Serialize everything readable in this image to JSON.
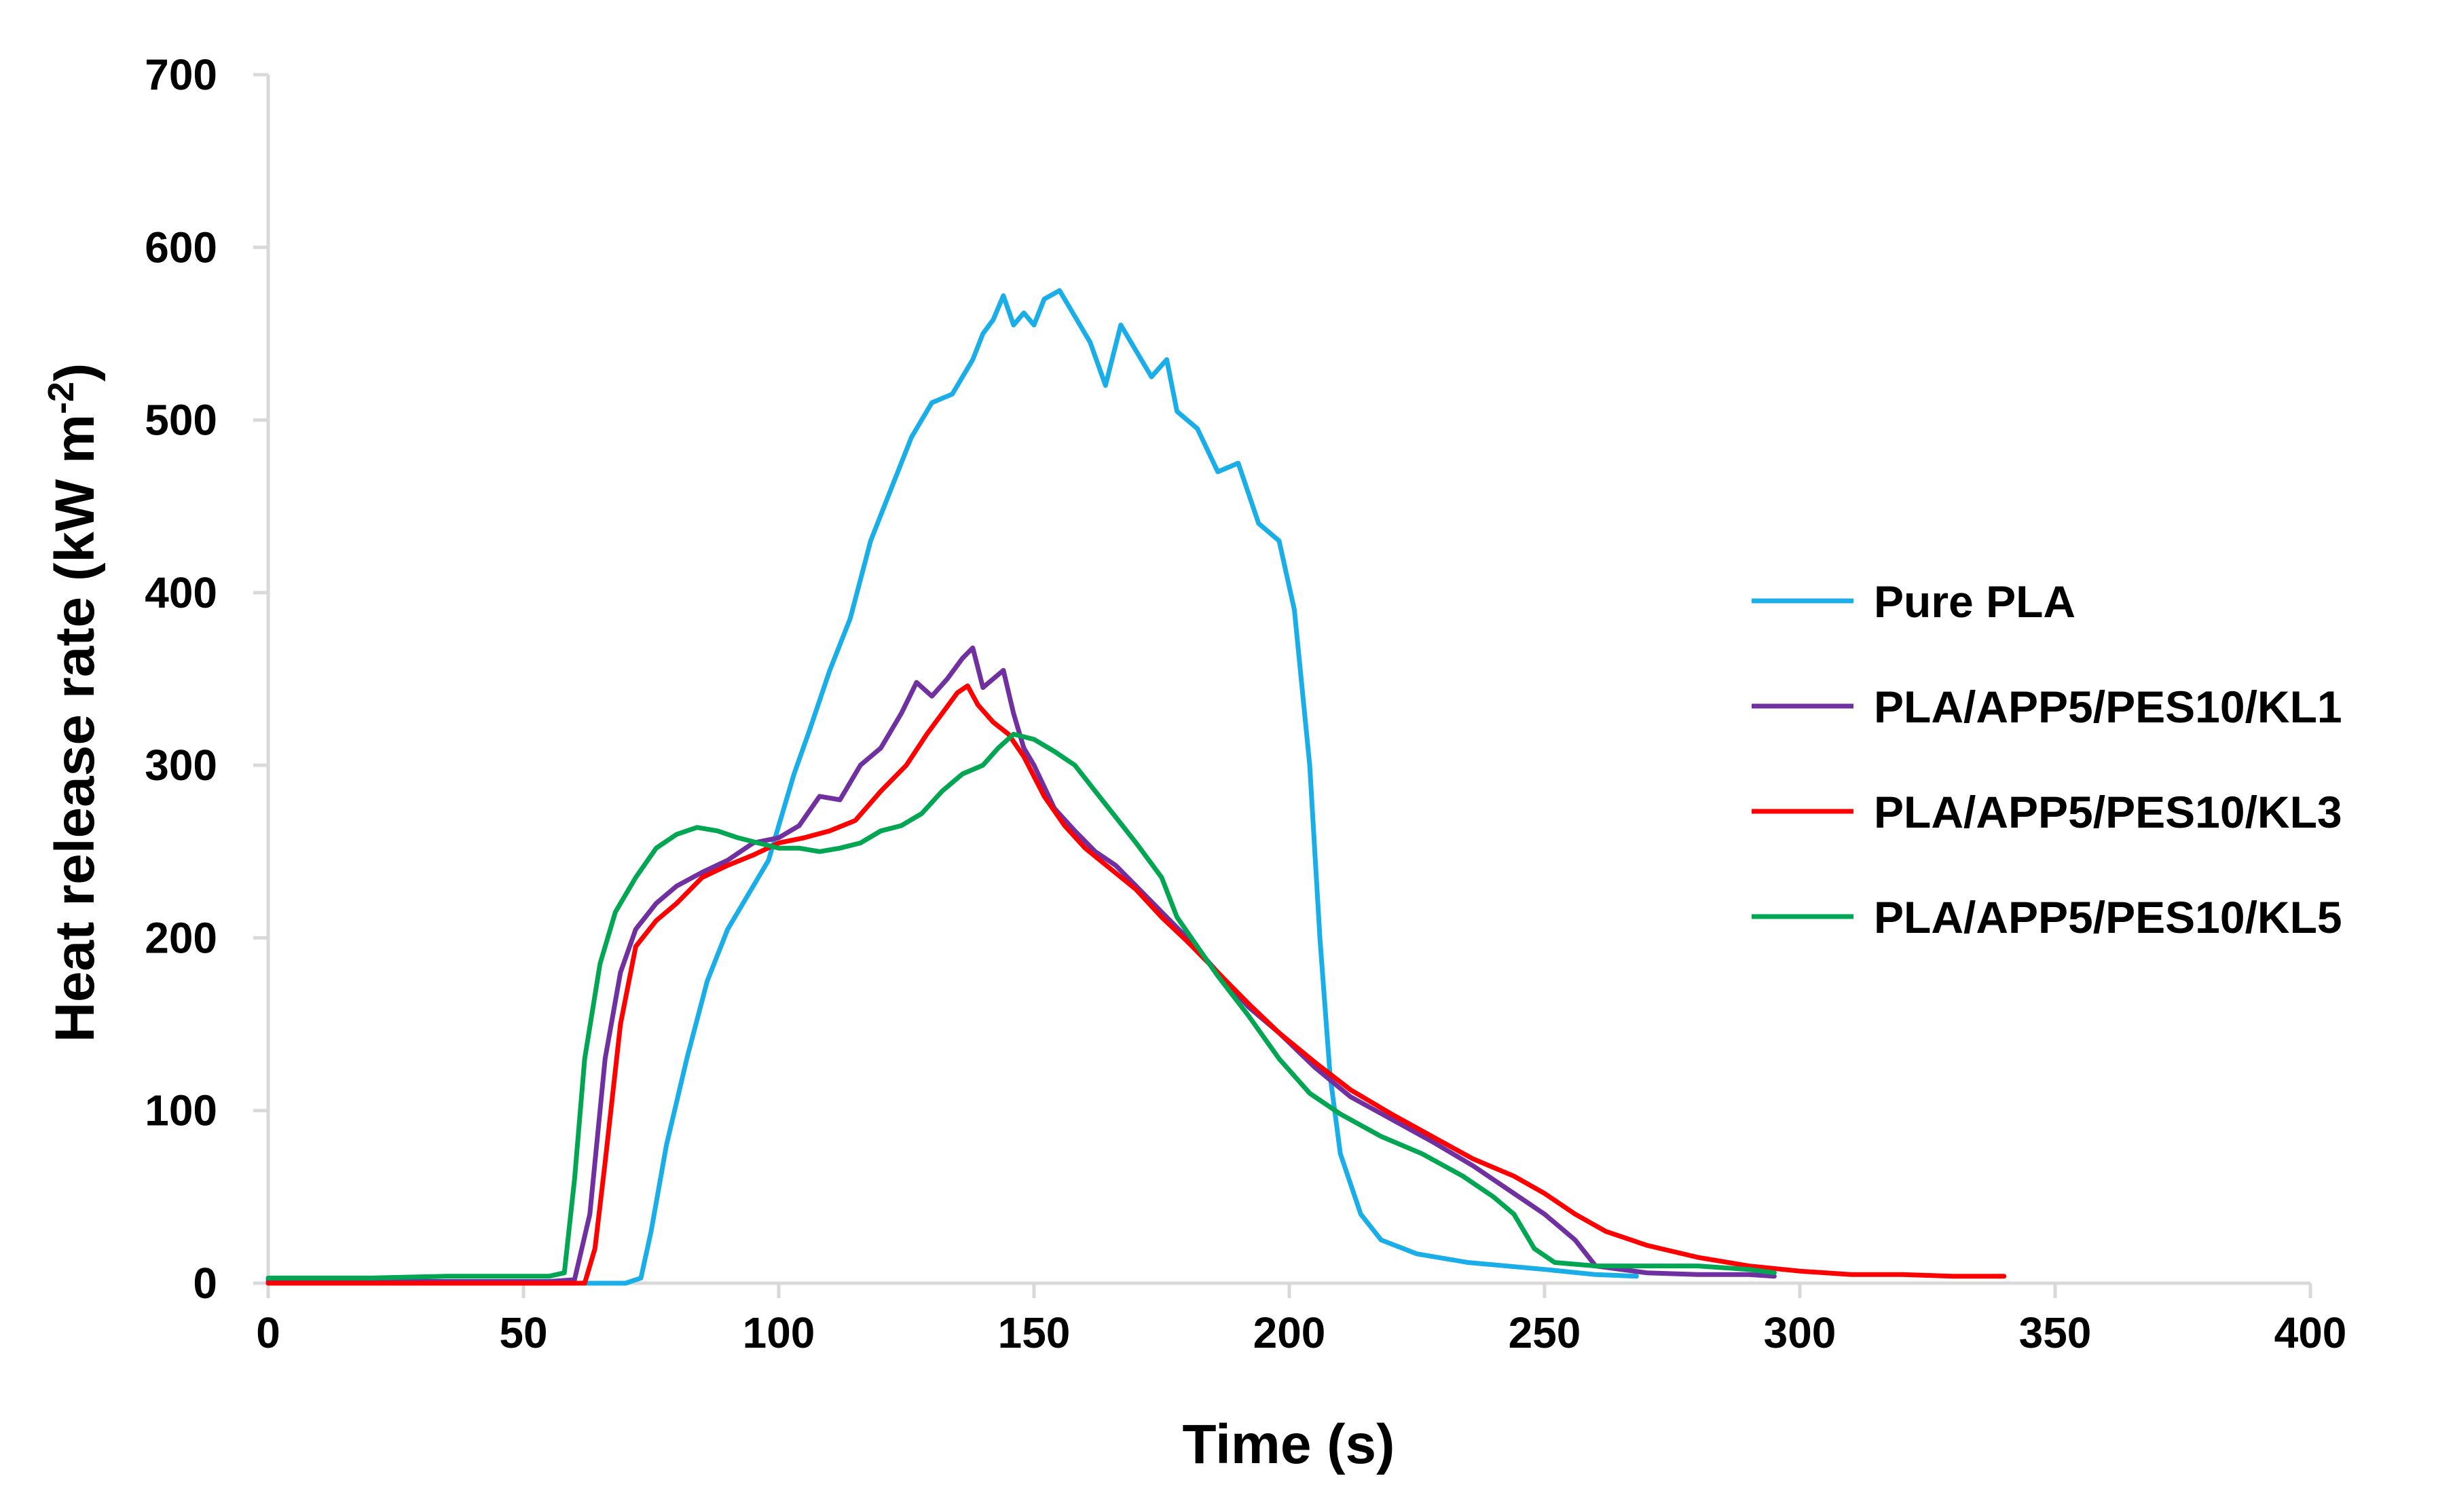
{
  "chart_data": {
    "type": "line",
    "title": "",
    "xlabel": "Time (s)",
    "ylabel_main": "Heat release rate (kW m",
    "ylabel_sup": "-2",
    "ylabel_close": ")",
    "xlim": [
      0,
      400
    ],
    "ylim": [
      0,
      700
    ],
    "xticks": [
      0,
      50,
      100,
      150,
      200,
      250,
      300,
      350,
      400
    ],
    "yticks": [
      0,
      100,
      200,
      300,
      400,
      500,
      600,
      700
    ],
    "xtick_labels": [
      "0",
      "50",
      "100",
      "150",
      "200",
      "250",
      "300",
      "350",
      "400"
    ],
    "ytick_labels": [
      "0",
      "100",
      "200",
      "300",
      "400",
      "500",
      "600",
      "700"
    ],
    "grid": false,
    "legend_position": "right",
    "series": [
      {
        "name": "Pure PLA",
        "color": "#1AAEE8",
        "points": [
          [
            0,
            2
          ],
          [
            20,
            1
          ],
          [
            40,
            1
          ],
          [
            60,
            0
          ],
          [
            70,
            0
          ],
          [
            73,
            3
          ],
          [
            75,
            30
          ],
          [
            78,
            80
          ],
          [
            82,
            130
          ],
          [
            86,
            175
          ],
          [
            90,
            205
          ],
          [
            94,
            225
          ],
          [
            98,
            245
          ],
          [
            100,
            265
          ],
          [
            103,
            295
          ],
          [
            106,
            320
          ],
          [
            110,
            355
          ],
          [
            114,
            385
          ],
          [
            118,
            430
          ],
          [
            122,
            460
          ],
          [
            126,
            490
          ],
          [
            130,
            510
          ],
          [
            134,
            515
          ],
          [
            138,
            535
          ],
          [
            140,
            550
          ],
          [
            142,
            558
          ],
          [
            144,
            572
          ],
          [
            146,
            555
          ],
          [
            148,
            562
          ],
          [
            150,
            555
          ],
          [
            152,
            570
          ],
          [
            155,
            575
          ],
          [
            158,
            560
          ],
          [
            161,
            545
          ],
          [
            164,
            520
          ],
          [
            167,
            555
          ],
          [
            170,
            540
          ],
          [
            173,
            525
          ],
          [
            176,
            535
          ],
          [
            178,
            505
          ],
          [
            182,
            495
          ],
          [
            186,
            470
          ],
          [
            190,
            475
          ],
          [
            194,
            440
          ],
          [
            198,
            430
          ],
          [
            201,
            390
          ],
          [
            204,
            300
          ],
          [
            206,
            200
          ],
          [
            208,
            120
          ],
          [
            210,
            75
          ],
          [
            214,
            40
          ],
          [
            218,
            25
          ],
          [
            225,
            17
          ],
          [
            235,
            12
          ],
          [
            250,
            8
          ],
          [
            260,
            5
          ],
          [
            268,
            4
          ]
        ]
      },
      {
        "name": "PLA/APP5/PES10/KL1",
        "color": "#7030A0",
        "points": [
          [
            0,
            1
          ],
          [
            20,
            1
          ],
          [
            40,
            1
          ],
          [
            55,
            1
          ],
          [
            60,
            2
          ],
          [
            63,
            40
          ],
          [
            66,
            130
          ],
          [
            69,
            180
          ],
          [
            72,
            205
          ],
          [
            76,
            220
          ],
          [
            80,
            230
          ],
          [
            85,
            238
          ],
          [
            90,
            245
          ],
          [
            95,
            255
          ],
          [
            100,
            258
          ],
          [
            104,
            265
          ],
          [
            108,
            282
          ],
          [
            112,
            280
          ],
          [
            116,
            300
          ],
          [
            120,
            310
          ],
          [
            124,
            330
          ],
          [
            127,
            348
          ],
          [
            130,
            340
          ],
          [
            133,
            350
          ],
          [
            136,
            362
          ],
          [
            138,
            368
          ],
          [
            140,
            345
          ],
          [
            142,
            350
          ],
          [
            144,
            355
          ],
          [
            146,
            330
          ],
          [
            148,
            310
          ],
          [
            150,
            300
          ],
          [
            154,
            275
          ],
          [
            158,
            262
          ],
          [
            162,
            250
          ],
          [
            166,
            242
          ],
          [
            170,
            230
          ],
          [
            175,
            215
          ],
          [
            180,
            200
          ],
          [
            186,
            180
          ],
          [
            192,
            160
          ],
          [
            198,
            145
          ],
          [
            205,
            125
          ],
          [
            212,
            108
          ],
          [
            220,
            95
          ],
          [
            228,
            82
          ],
          [
            236,
            68
          ],
          [
            244,
            52
          ],
          [
            250,
            40
          ],
          [
            256,
            25
          ],
          [
            260,
            10
          ],
          [
            270,
            6
          ],
          [
            280,
            5
          ],
          [
            290,
            5
          ],
          [
            295,
            4
          ]
        ]
      },
      {
        "name": "PLA/APP5/PES10/KL3",
        "color": "#FF0000",
        "points": [
          [
            0,
            0
          ],
          [
            20,
            0
          ],
          [
            40,
            0
          ],
          [
            55,
            0
          ],
          [
            62,
            0
          ],
          [
            64,
            20
          ],
          [
            66,
            70
          ],
          [
            69,
            150
          ],
          [
            72,
            195
          ],
          [
            76,
            210
          ],
          [
            80,
            220
          ],
          [
            85,
            235
          ],
          [
            90,
            242
          ],
          [
            95,
            248
          ],
          [
            100,
            255
          ],
          [
            105,
            258
          ],
          [
            110,
            262
          ],
          [
            115,
            268
          ],
          [
            120,
            285
          ],
          [
            125,
            300
          ],
          [
            129,
            318
          ],
          [
            132,
            330
          ],
          [
            135,
            342
          ],
          [
            137,
            346
          ],
          [
            139,
            335
          ],
          [
            142,
            325
          ],
          [
            145,
            318
          ],
          [
            148,
            305
          ],
          [
            152,
            282
          ],
          [
            156,
            265
          ],
          [
            160,
            252
          ],
          [
            165,
            240
          ],
          [
            170,
            228
          ],
          [
            175,
            212
          ],
          [
            180,
            198
          ],
          [
            186,
            180
          ],
          [
            192,
            162
          ],
          [
            198,
            145
          ],
          [
            205,
            128
          ],
          [
            212,
            112
          ],
          [
            220,
            98
          ],
          [
            228,
            85
          ],
          [
            236,
            72
          ],
          [
            244,
            62
          ],
          [
            250,
            52
          ],
          [
            256,
            40
          ],
          [
            262,
            30
          ],
          [
            270,
            22
          ],
          [
            280,
            15
          ],
          [
            290,
            10
          ],
          [
            300,
            7
          ],
          [
            310,
            5
          ],
          [
            320,
            5
          ],
          [
            330,
            4
          ],
          [
            340,
            4
          ]
        ]
      },
      {
        "name": "PLA/APP5/PES10/KL5",
        "color": "#00A651",
        "points": [
          [
            0,
            3
          ],
          [
            20,
            3
          ],
          [
            35,
            4
          ],
          [
            45,
            4
          ],
          [
            55,
            4
          ],
          [
            58,
            6
          ],
          [
            60,
            60
          ],
          [
            62,
            130
          ],
          [
            65,
            185
          ],
          [
            68,
            215
          ],
          [
            72,
            235
          ],
          [
            76,
            252
          ],
          [
            80,
            260
          ],
          [
            84,
            264
          ],
          [
            88,
            262
          ],
          [
            92,
            258
          ],
          [
            96,
            255
          ],
          [
            100,
            252
          ],
          [
            104,
            252
          ],
          [
            108,
            250
          ],
          [
            112,
            252
          ],
          [
            116,
            255
          ],
          [
            120,
            262
          ],
          [
            124,
            265
          ],
          [
            128,
            272
          ],
          [
            132,
            285
          ],
          [
            136,
            295
          ],
          [
            140,
            300
          ],
          [
            143,
            310
          ],
          [
            146,
            318
          ],
          [
            150,
            315
          ],
          [
            154,
            308
          ],
          [
            158,
            300
          ],
          [
            162,
            285
          ],
          [
            166,
            270
          ],
          [
            170,
            255
          ],
          [
            175,
            235
          ],
          [
            178,
            212
          ],
          [
            182,
            195
          ],
          [
            186,
            178
          ],
          [
            192,
            155
          ],
          [
            198,
            130
          ],
          [
            204,
            110
          ],
          [
            210,
            98
          ],
          [
            218,
            85
          ],
          [
            226,
            75
          ],
          [
            234,
            62
          ],
          [
            240,
            50
          ],
          [
            244,
            40
          ],
          [
            248,
            20
          ],
          [
            252,
            12
          ],
          [
            260,
            10
          ],
          [
            270,
            10
          ],
          [
            280,
            10
          ],
          [
            290,
            8
          ],
          [
            295,
            6
          ]
        ]
      }
    ]
  }
}
